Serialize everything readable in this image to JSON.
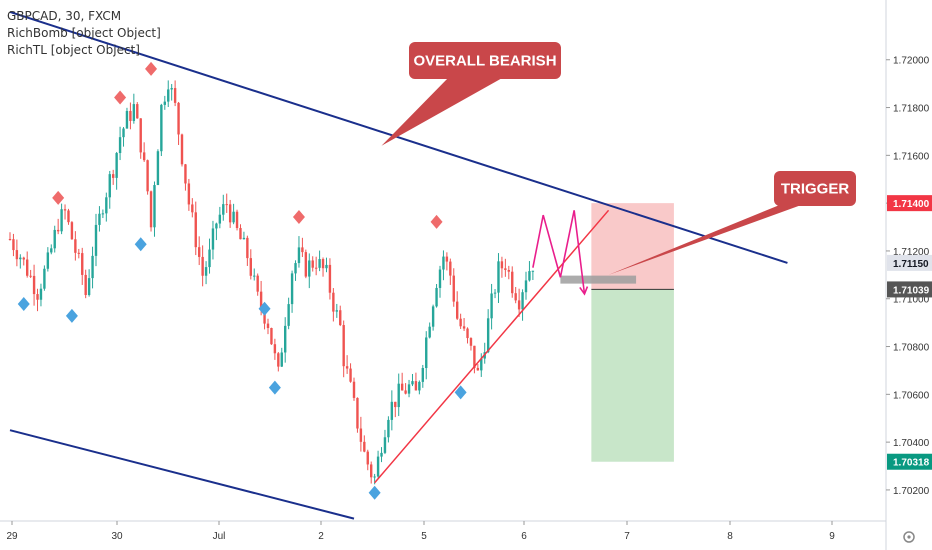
{
  "header": {
    "symbol_line": "GBPCAD, 30, FXCM",
    "indicator_1": "RichBomb [object Object]",
    "indicator_2": "RichTL [object Object]"
  },
  "colors": {
    "candle_up": "#26a69a",
    "candle_down": "#ef5350",
    "channel_line": "#1a2f8c",
    "trigger_line": "#f23645",
    "zigzag": "#e91e8c",
    "stop_zone": "#f9c9c9",
    "target_zone": "#c8e6c9",
    "entry_bar": "#9e9e9e",
    "callout_bg": "#c9474a",
    "marker_top": "#ef6b6b",
    "marker_bottom": "#4aa3df"
  },
  "chart_data": {
    "type": "candlestick",
    "symbol": "GBPCAD",
    "timeframe": "30",
    "exchange": "FXCM",
    "x_tick_labels": [
      "29",
      "30",
      "Jul",
      "2",
      "5",
      "6",
      "7",
      "8",
      "9"
    ],
    "y_tick_labels": [
      "1.72000",
      "1.71800",
      "1.71600",
      "1.71400",
      "1.71200",
      "1.71150",
      "1.71039",
      "1.71000",
      "1.70800",
      "1.70600",
      "1.70400",
      "1.70318",
      "1.70200"
    ],
    "y_ticks": [
      1.72,
      1.718,
      1.716,
      1.714,
      1.712,
      1.71,
      1.708,
      1.706,
      1.704,
      1.702
    ],
    "ylim": [
      1.7007,
      1.7225
    ],
    "price_badges": [
      {
        "label": "1.71400",
        "value": 1.714,
        "color": "#f23645",
        "text_color": "#ffffff"
      },
      {
        "label": "1.71150",
        "value": 1.7115,
        "color": "#e0e3eb",
        "text_color": "#131722"
      },
      {
        "label": "1.71039",
        "value": 1.71039,
        "color": "#555555",
        "text_color": "#ffffff"
      },
      {
        "label": "1.70318",
        "value": 1.70318,
        "color": "#089981",
        "text_color": "#ffffff"
      }
    ],
    "price_path": [
      [
        0,
        1.7125
      ],
      [
        3,
        1.7118
      ],
      [
        5,
        1.7112
      ],
      [
        8,
        1.7103
      ],
      [
        11,
        1.7115
      ],
      [
        14,
        1.7132
      ],
      [
        16,
        1.7136
      ],
      [
        19,
        1.712
      ],
      [
        21,
        1.711
      ],
      [
        22,
        1.7102
      ],
      [
        24,
        1.712
      ],
      [
        27,
        1.714
      ],
      [
        30,
        1.7155
      ],
      [
        32,
        1.7168
      ],
      [
        34,
        1.7175
      ],
      [
        36,
        1.718
      ],
      [
        38,
        1.7165
      ],
      [
        40,
        1.7145
      ],
      [
        41,
        1.713
      ],
      [
        42,
        1.715
      ],
      [
        44,
        1.718
      ],
      [
        46,
        1.7192
      ],
      [
        48,
        1.718
      ],
      [
        50,
        1.716
      ],
      [
        52,
        1.714
      ],
      [
        54,
        1.7125
      ],
      [
        56,
        1.711
      ],
      [
        58,
        1.7118
      ],
      [
        60,
        1.7132
      ],
      [
        63,
        1.714
      ],
      [
        66,
        1.7128
      ],
      [
        69,
        1.7118
      ],
      [
        72,
        1.71
      ],
      [
        75,
        1.709
      ],
      [
        77,
        1.7075
      ],
      [
        78,
        1.7068
      ],
      [
        80,
        1.7092
      ],
      [
        82,
        1.7112
      ],
      [
        84,
        1.7118
      ],
      [
        86,
        1.7113
      ],
      [
        89,
        1.7116
      ],
      [
        92,
        1.711
      ],
      [
        94,
        1.7098
      ],
      [
        96,
        1.7088
      ],
      [
        97,
        1.7075
      ],
      [
        99,
        1.7062
      ],
      [
        101,
        1.7048
      ],
      [
        103,
        1.7035
      ],
      [
        105,
        1.7027
      ],
      [
        106,
        1.7025
      ],
      [
        108,
        1.704
      ],
      [
        110,
        1.7053
      ],
      [
        113,
        1.706
      ],
      [
        116,
        1.7063
      ],
      [
        118,
        1.706
      ],
      [
        120,
        1.7075
      ],
      [
        122,
        1.7092
      ],
      [
        124,
        1.7108
      ],
      [
        126,
        1.7118
      ],
      [
        128,
        1.711
      ],
      [
        130,
        1.7092
      ],
      [
        132,
        1.7085
      ],
      [
        134,
        1.7078
      ],
      [
        136,
        1.7068
      ],
      [
        138,
        1.7082
      ],
      [
        140,
        1.7098
      ],
      [
        142,
        1.7112
      ],
      [
        144,
        1.7115
      ],
      [
        146,
        1.7106
      ],
      [
        148,
        1.71
      ],
      [
        150,
        1.711
      ],
      [
        152,
        1.7115
      ]
    ],
    "swing_highs": [
      {
        "bar": 14,
        "price": 1.7138
      },
      {
        "bar": 32,
        "price": 1.718
      },
      {
        "bar": 41,
        "price": 1.7192
      },
      {
        "bar": 84,
        "price": 1.713
      },
      {
        "bar": 124,
        "price": 1.7128
      }
    ],
    "swing_lows": [
      {
        "bar": 4,
        "price": 1.7102
      },
      {
        "bar": 18,
        "price": 1.7097
      },
      {
        "bar": 38,
        "price": 1.7127
      },
      {
        "bar": 74,
        "price": 1.71
      },
      {
        "bar": 77,
        "price": 1.7067
      },
      {
        "bar": 106,
        "price": 1.7023
      },
      {
        "bar": 131,
        "price": 1.7065
      }
    ],
    "projection_zigzag": [
      [
        152,
        1.7113
      ],
      [
        155,
        1.7135
      ],
      [
        160,
        1.7109
      ],
      [
        164,
        1.7137
      ],
      [
        167,
        1.7102
      ]
    ],
    "entry_marker": {
      "bar_from": 160,
      "bar_to": 182,
      "price": 1.7108
    },
    "stop_zone": {
      "bar_from": 169,
      "bar_to": 193,
      "top": 1.714,
      "bottom": 1.71039
    },
    "target_zone": {
      "bar_from": 169,
      "bar_to": 193,
      "top": 1.71039,
      "bottom": 1.70318
    },
    "channel_top": [
      [
        0,
        1.722
      ],
      [
        226,
        1.7115
      ]
    ],
    "channel_bottom": [
      [
        0,
        1.7045
      ],
      [
        100,
        1.7008
      ]
    ],
    "trigger_trendline": [
      [
        106,
        1.7023
      ],
      [
        174,
        1.7137
      ]
    ],
    "callouts": [
      {
        "text": "OVERALL BEARISH",
        "pointer_target": {
          "bar": 108,
          "price": 1.7164
        }
      },
      {
        "text": "TRIGGER",
        "pointer_target": {
          "bar": 174,
          "price": 1.711
        }
      }
    ]
  }
}
